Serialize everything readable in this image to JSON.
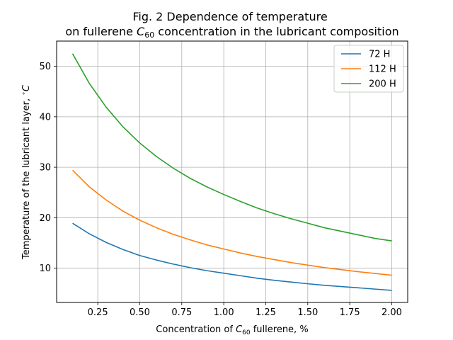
{
  "chart_data": {
    "type": "line",
    "title_line1": "Fig. 2 Dependence of temperature",
    "title_line2_prefix": "on fullerene ",
    "title_line2_var": "C",
    "title_line2_sub": "60",
    "title_line2_suffix": " concentration in the lubricant composition",
    "xlabel_prefix": "Concentration of ",
    "xlabel_var": "C",
    "xlabel_sub": "60",
    "xlabel_suffix": " fullerene, %",
    "ylabel_prefix": "Temperature of the lubricant layer, ",
    "ylabel_deg": "∘",
    "ylabel_var": "C",
    "xlim": [
      0.005,
      2.095
    ],
    "ylim": [
      3.2,
      55.0
    ],
    "xticks": [
      0.25,
      0.5,
      0.75,
      1.0,
      1.25,
      1.5,
      1.75,
      2.0
    ],
    "xtick_labels": [
      "0.25",
      "0.50",
      "0.75",
      "1.00",
      "1.25",
      "1.50",
      "1.75",
      "2.00"
    ],
    "yticks": [
      10,
      20,
      30,
      40,
      50
    ],
    "ytick_labels": [
      "10",
      "20",
      "30",
      "40",
      "50"
    ],
    "grid": true,
    "legend_position": "top-right",
    "x": [
      0.1,
      0.2,
      0.3,
      0.4,
      0.5,
      0.6,
      0.7,
      0.8,
      0.9,
      1.0,
      1.1,
      1.2,
      1.3,
      1.4,
      1.5,
      1.6,
      1.7,
      1.8,
      1.9,
      2.0
    ],
    "series": [
      {
        "name": "72 H",
        "color": "#1f77b4",
        "values": [
          18.9,
          16.8,
          15.1,
          13.7,
          12.5,
          11.6,
          10.8,
          10.1,
          9.5,
          9.0,
          8.5,
          8.0,
          7.6,
          7.25,
          6.9,
          6.6,
          6.35,
          6.1,
          5.85,
          5.6
        ]
      },
      {
        "name": "112 H",
        "color": "#ff7f0e",
        "values": [
          29.4,
          26.1,
          23.5,
          21.3,
          19.5,
          18.0,
          16.7,
          15.6,
          14.6,
          13.8,
          13.0,
          12.3,
          11.7,
          11.1,
          10.6,
          10.1,
          9.7,
          9.3,
          8.95,
          8.6
        ]
      },
      {
        "name": "200 H",
        "color": "#2ca02c",
        "values": [
          52.5,
          46.6,
          41.9,
          38.0,
          34.8,
          32.1,
          29.8,
          27.8,
          26.1,
          24.6,
          23.2,
          21.9,
          20.8,
          19.8,
          18.9,
          18.0,
          17.3,
          16.6,
          15.9,
          15.4
        ]
      }
    ]
  }
}
